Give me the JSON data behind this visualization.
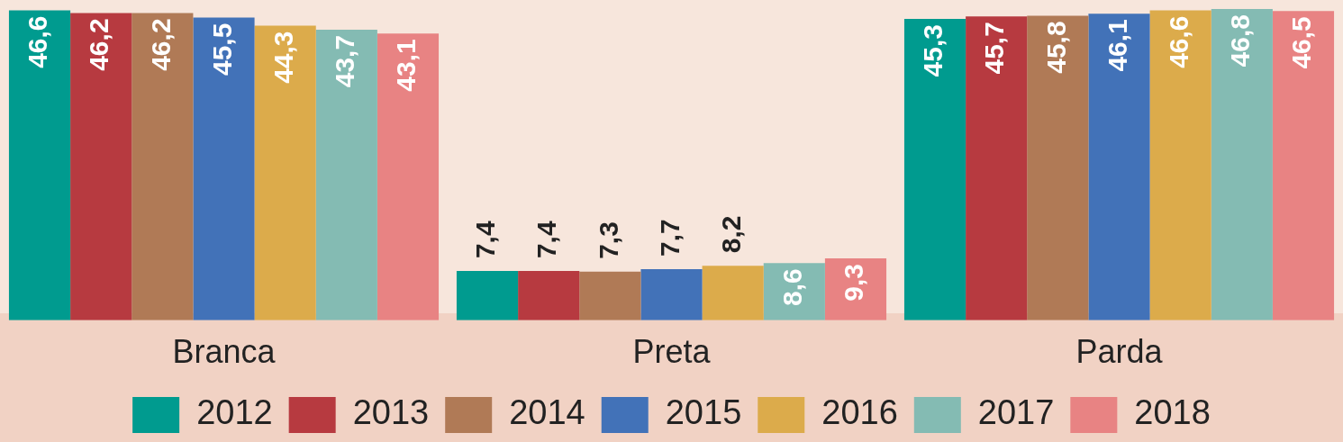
{
  "chart_data": {
    "type": "bar",
    "categories": [
      "Branca",
      "Preta",
      "Parda"
    ],
    "series": [
      {
        "name": "2012",
        "color": "#009b8f",
        "values": [
          46.6,
          7.4,
          45.3
        ],
        "value_labels": [
          "46,6",
          "7,4",
          "45,3"
        ]
      },
      {
        "name": "2013",
        "color": "#b73a40",
        "values": [
          46.2,
          7.4,
          45.7
        ],
        "value_labels": [
          "46,2",
          "7,4",
          "45,7"
        ]
      },
      {
        "name": "2014",
        "color": "#b07a56",
        "values": [
          46.2,
          7.3,
          45.8
        ],
        "value_labels": [
          "46,2",
          "7,3",
          "45,8"
        ]
      },
      {
        "name": "2015",
        "color": "#4272b8",
        "values": [
          45.5,
          7.7,
          46.1
        ],
        "value_labels": [
          "45,5",
          "7,7",
          "46,1"
        ]
      },
      {
        "name": "2016",
        "color": "#dcab4b",
        "values": [
          44.3,
          8.2,
          46.6
        ],
        "value_labels": [
          "44,3",
          "8,2",
          "46,6"
        ]
      },
      {
        "name": "2017",
        "color": "#84bbb3",
        "values": [
          43.7,
          8.6,
          46.8
        ],
        "value_labels": [
          "43,7",
          "8,6",
          "46,8"
        ]
      },
      {
        "name": "2018",
        "color": "#e88383",
        "values": [
          43.1,
          9.3,
          46.5
        ],
        "value_labels": [
          "43,1",
          "9,3",
          "46,5"
        ]
      }
    ],
    "legend": "bottom",
    "grid": false,
    "tick_labels": "x"
  }
}
